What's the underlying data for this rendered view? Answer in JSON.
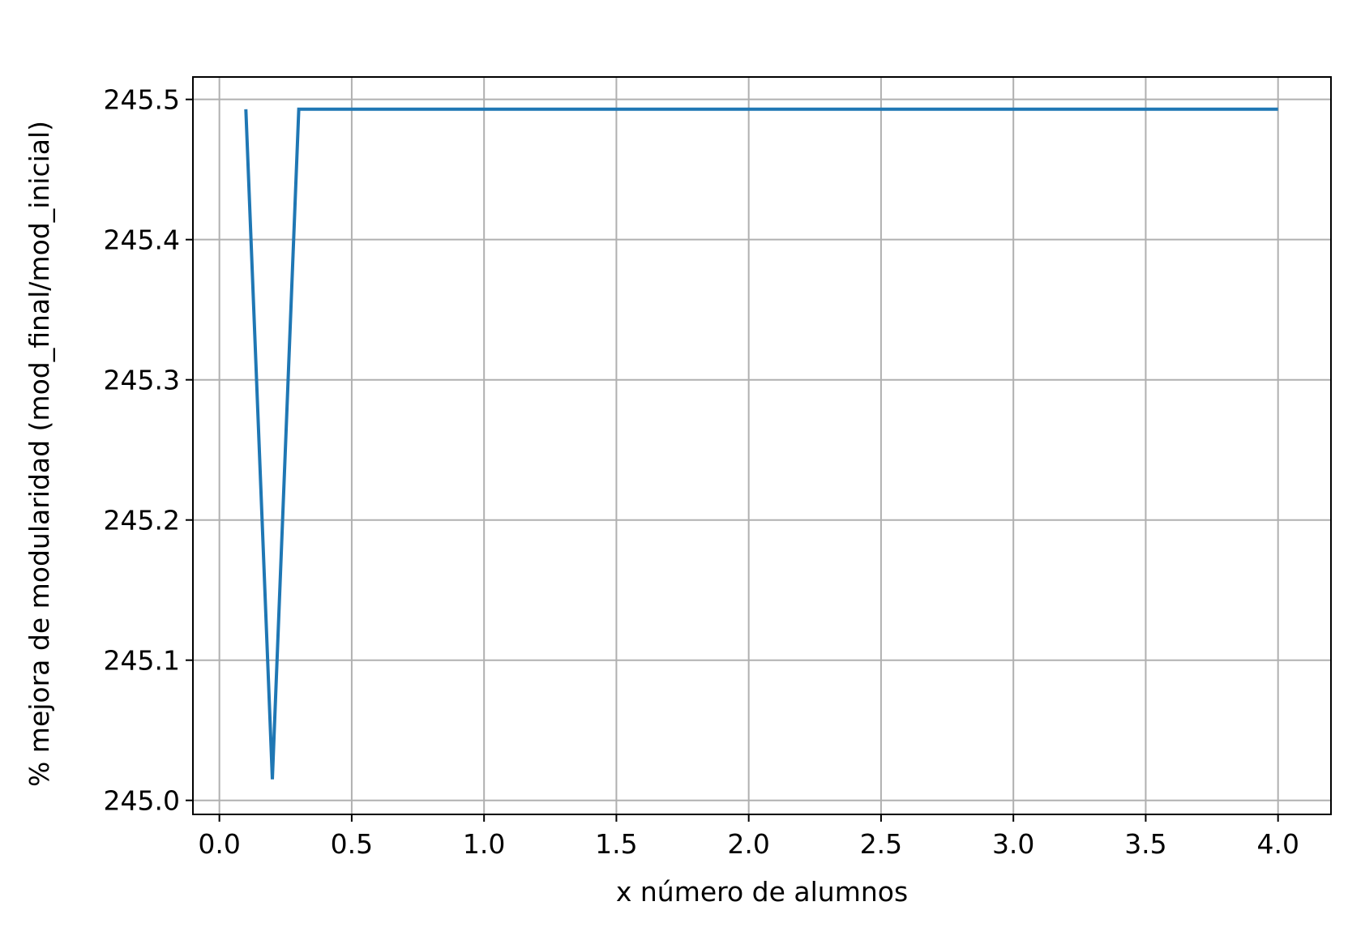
{
  "chart_data": {
    "type": "line",
    "title": "",
    "xlabel": "x número de alumnos",
    "ylabel": "% mejora de modularidad (mod_final/mod_inicial)",
    "xlim": [
      -0.1,
      4.2
    ],
    "ylim": [
      244.99,
      245.516
    ],
    "xticks": [
      0.0,
      0.5,
      1.0,
      1.5,
      2.0,
      2.5,
      3.0,
      3.5,
      4.0
    ],
    "xtick_labels": [
      "0.0",
      "0.5",
      "1.0",
      "1.5",
      "2.0",
      "2.5",
      "3.0",
      "3.5",
      "4.0"
    ],
    "yticks": [
      245.0,
      245.1,
      245.2,
      245.3,
      245.4,
      245.5
    ],
    "ytick_labels": [
      "245.0",
      "245.1",
      "245.2",
      "245.3",
      "245.4",
      "245.5"
    ],
    "grid": true,
    "series": [
      {
        "color": "#1f77b4",
        "x": [
          0.1,
          0.2,
          0.3,
          0.4,
          0.5,
          0.6,
          0.7,
          0.8,
          0.9,
          1.0,
          1.5,
          2.0,
          2.5,
          3.0,
          3.5,
          4.0
        ],
        "y": [
          245.493,
          245.015,
          245.493,
          245.493,
          245.493,
          245.493,
          245.493,
          245.493,
          245.493,
          245.493,
          245.493,
          245.493,
          245.493,
          245.493,
          245.493,
          245.493
        ]
      }
    ]
  }
}
